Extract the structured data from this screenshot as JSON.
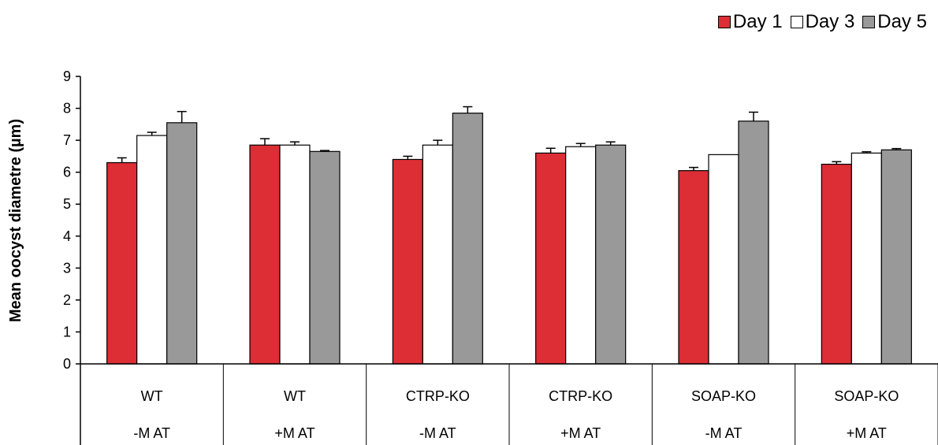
{
  "chart_data": {
    "type": "bar",
    "title": "",
    "ylabel": "Mean oocyst diametre (µm)",
    "xlabel": "",
    "ylim": [
      0,
      9
    ],
    "yticks": [
      0,
      1,
      2,
      3,
      4,
      5,
      6,
      7,
      8,
      9
    ],
    "categories": [
      {
        "line1": "WT",
        "line2": "-M AT"
      },
      {
        "line1": "WT",
        "line2": "+M AT"
      },
      {
        "line1": "CTRP-KO",
        "line2": "-M AT"
      },
      {
        "line1": "CTRP-KO",
        "line2": "+M AT"
      },
      {
        "line1": "SOAP-KO",
        "line2": "-M AT"
      },
      {
        "line1": "SOAP-KO",
        "line2": "+M AT"
      }
    ],
    "series": [
      {
        "name": "Day 1",
        "color": "#dd2d35",
        "values": [
          6.3,
          6.85,
          6.4,
          6.6,
          6.05,
          6.25
        ],
        "errors": [
          0.15,
          0.2,
          0.1,
          0.15,
          0.1,
          0.08
        ]
      },
      {
        "name": "Day 3",
        "color": "#ffffff",
        "values": [
          7.15,
          6.85,
          6.85,
          6.8,
          6.55,
          6.6
        ],
        "errors": [
          0.1,
          0.1,
          0.15,
          0.1,
          0.0,
          0.04
        ]
      },
      {
        "name": "Day 5",
        "color": "#999999",
        "values": [
          7.55,
          6.65,
          7.85,
          6.85,
          7.6,
          6.7
        ],
        "errors": [
          0.35,
          0.03,
          0.2,
          0.1,
          0.28,
          0.04
        ]
      }
    ],
    "legend": "top-right"
  }
}
